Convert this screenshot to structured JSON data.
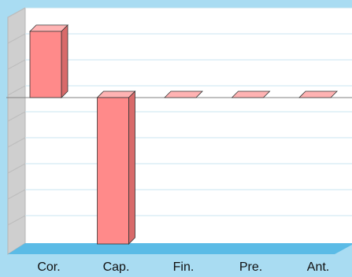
{
  "chart_data": {
    "type": "bar",
    "title": "",
    "xlabel": "",
    "ylabel": "",
    "categories": [
      "Cor.",
      "Cap.",
      "Fin.",
      "Pre.",
      "Ant."
    ],
    "values": [
      0.95,
      -2.1,
      0.0,
      0.0,
      0.0
    ],
    "ylim": [
      -2.1,
      1.1
    ],
    "grid": true,
    "legend": "none",
    "colors": {
      "background": "#a9dcf2",
      "plot_background": "#ffffff",
      "gridline": "#c8e4f0",
      "bar_face": "#ff8a8a",
      "bar_top": "#ffb3b3",
      "bar_side": "#d86a6a",
      "floor": "#5bbbe6",
      "left_wall": "#cfcfcf",
      "zero_line": "#808080",
      "tick_label": "#111111"
    }
  }
}
